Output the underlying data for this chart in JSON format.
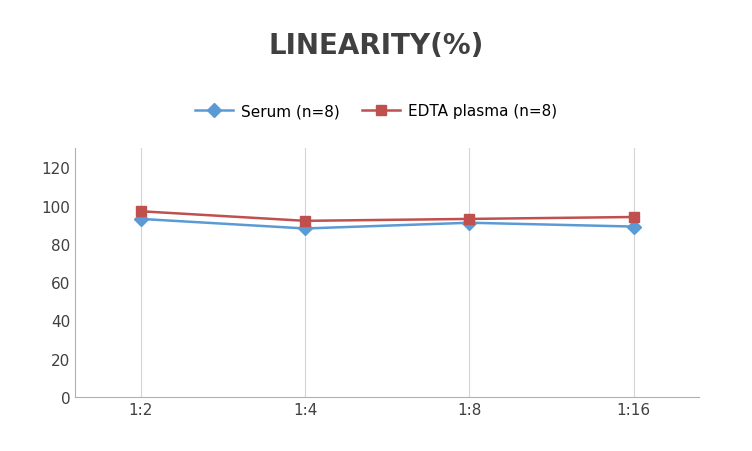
{
  "title": "LINEARITY(%)",
  "title_fontsize": 20,
  "title_fontweight": "bold",
  "x_labels": [
    "1:2",
    "1:4",
    "1:8",
    "1:16"
  ],
  "serum_label": "Serum (n=8)",
  "edta_label": "EDTA plasma (n=8)",
  "serum_values": [
    93,
    88,
    91,
    89
  ],
  "edta_values": [
    97,
    92,
    93,
    94
  ],
  "serum_color": "#5B9BD5",
  "edta_color": "#C0504D",
  "ylim": [
    0,
    130
  ],
  "yticks": [
    0,
    20,
    40,
    60,
    80,
    100,
    120
  ],
  "background_color": "#ffffff",
  "grid_color": "#d4d4d4",
  "legend_fontsize": 11,
  "axis_fontsize": 11,
  "line_width": 1.8,
  "marker_size": 7,
  "title_color": "#404040"
}
